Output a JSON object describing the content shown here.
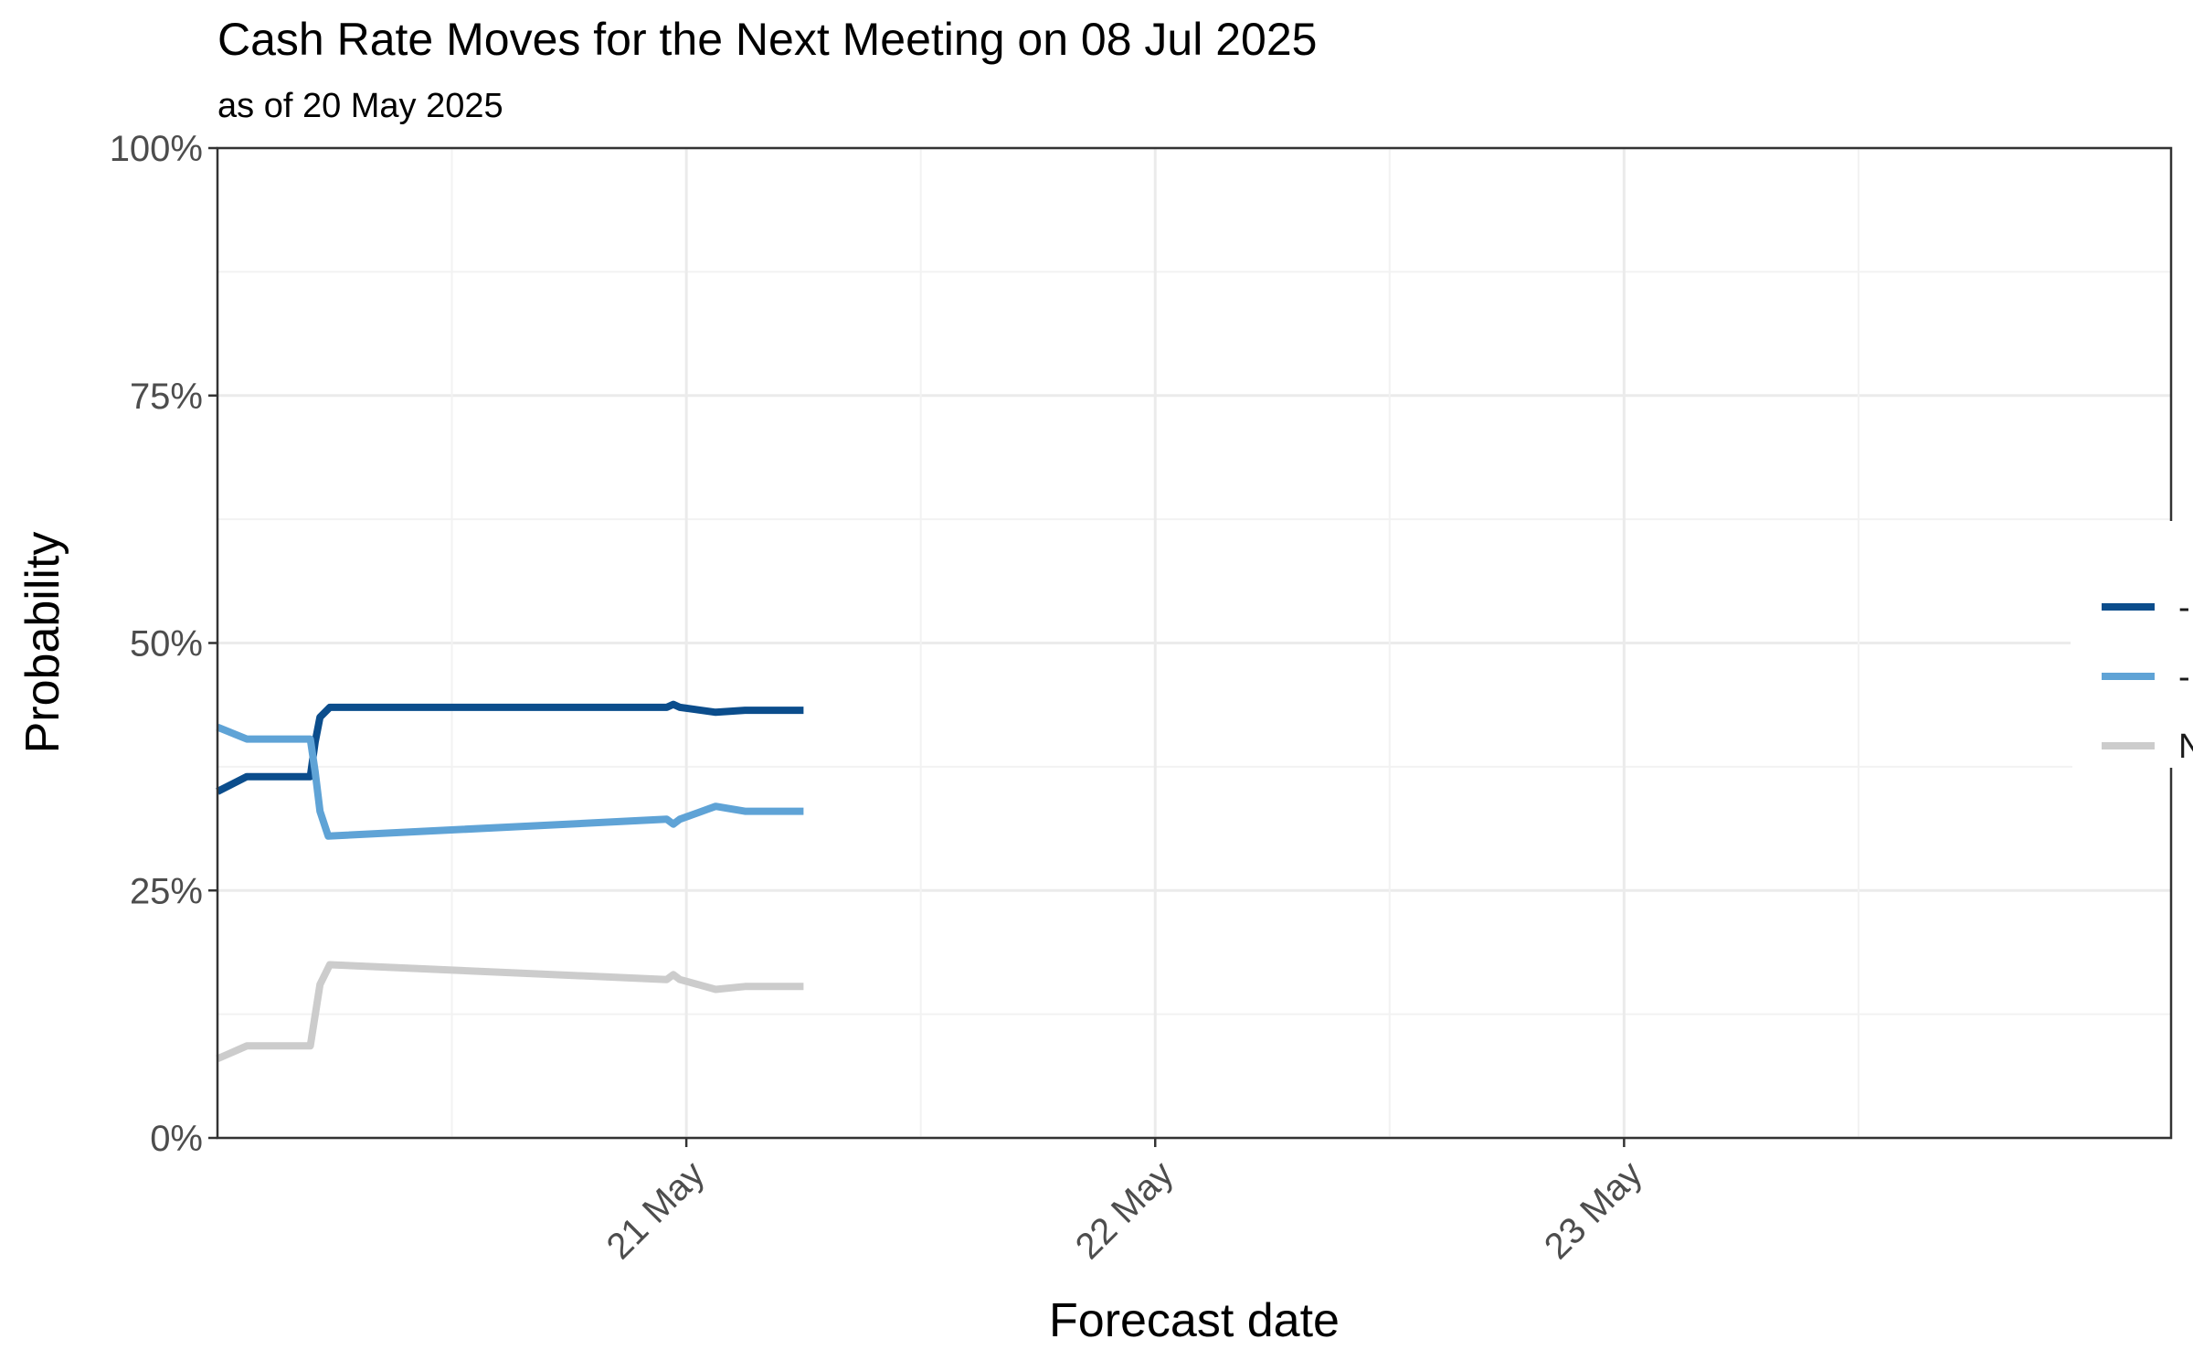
{
  "chart_data": {
    "type": "line",
    "title": "Cash Rate Moves for the Next Meeting on 08 Jul 2025",
    "subtitle": "as of 20 May 2025",
    "xlabel": "Forecast date",
    "ylabel": "Probability",
    "x_axis": {
      "type": "date",
      "range": [
        "2025-05-20T00:00",
        "2025-05-24T04:00"
      ],
      "ticks": [
        {
          "value": "2025-05-21T00:00",
          "label": "21 May"
        },
        {
          "value": "2025-05-22T00:00",
          "label": "22 May"
        },
        {
          "value": "2025-05-23T00:00",
          "label": "23 May"
        }
      ]
    },
    "y_axis": {
      "range": [
        0,
        1
      ],
      "ticks": [
        {
          "value": 0,
          "label": "0%"
        },
        {
          "value": 0.25,
          "label": "25%"
        },
        {
          "value": 0.5,
          "label": "50%"
        },
        {
          "value": 0.75,
          "label": "75%"
        },
        {
          "value": 1,
          "label": "100%"
        }
      ]
    },
    "grid": true,
    "legend": {
      "position": "right",
      "partially_visible": true
    },
    "series": [
      {
        "legend_label": "-",
        "color": "#0b4d8c",
        "points": [
          [
            "2025-05-20T00:00",
            0.35
          ],
          [
            "2025-05-20T01:30",
            0.365
          ],
          [
            "2025-05-20T04:45",
            0.365
          ],
          [
            "2025-05-20T05:00",
            0.4
          ],
          [
            "2025-05-20T05:15",
            0.425
          ],
          [
            "2025-05-20T05:45",
            0.435
          ],
          [
            "2025-05-20T22:00",
            0.435
          ],
          [
            "2025-05-20T23:00",
            0.435
          ],
          [
            "2025-05-20T23:20",
            0.438
          ],
          [
            "2025-05-20T23:40",
            0.435
          ],
          [
            "2025-05-21T01:30",
            0.43
          ],
          [
            "2025-05-21T03:00",
            0.432
          ],
          [
            "2025-05-21T06:00",
            0.432
          ]
        ]
      },
      {
        "legend_label": "-",
        "color": "#5fa3d6",
        "points": [
          [
            "2025-05-20T00:00",
            0.415
          ],
          [
            "2025-05-20T01:30",
            0.403
          ],
          [
            "2025-05-20T04:45",
            0.403
          ],
          [
            "2025-05-20T05:00",
            0.37
          ],
          [
            "2025-05-20T05:15",
            0.33
          ],
          [
            "2025-05-20T05:40",
            0.305
          ],
          [
            "2025-05-20T23:00",
            0.322
          ],
          [
            "2025-05-20T23:20",
            0.317
          ],
          [
            "2025-05-20T23:40",
            0.322
          ],
          [
            "2025-05-21T01:30",
            0.335
          ],
          [
            "2025-05-21T03:00",
            0.33
          ],
          [
            "2025-05-21T06:00",
            0.33
          ]
        ]
      },
      {
        "legend_label": "N",
        "color": "#cccccc",
        "points": [
          [
            "2025-05-20T00:00",
            0.08
          ],
          [
            "2025-05-20T01:30",
            0.093
          ],
          [
            "2025-05-20T04:45",
            0.093
          ],
          [
            "2025-05-20T05:15",
            0.155
          ],
          [
            "2025-05-20T05:45",
            0.175
          ],
          [
            "2025-05-20T23:00",
            0.16
          ],
          [
            "2025-05-20T23:20",
            0.165
          ],
          [
            "2025-05-20T23:40",
            0.16
          ],
          [
            "2025-05-21T01:30",
            0.15
          ],
          [
            "2025-05-21T03:00",
            0.153
          ],
          [
            "2025-05-21T06:00",
            0.153
          ]
        ]
      }
    ]
  }
}
